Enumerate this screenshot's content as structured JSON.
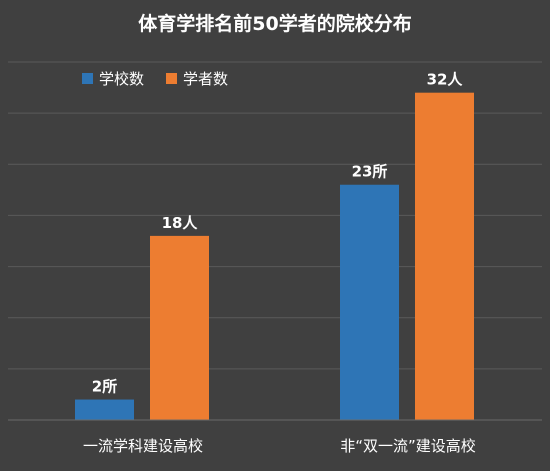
{
  "chart_data": {
    "type": "bar",
    "title": "体育学排名前50学者的院校分布",
    "categories": [
      "一流学科建设高校",
      "非“双一流”建设高校"
    ],
    "series": [
      {
        "name": "学校数",
        "values": [
          2,
          23
        ],
        "labels": [
          "2所",
          "23所"
        ],
        "color": "#2e75b6"
      },
      {
        "name": "学者数",
        "values": [
          18,
          32
        ],
        "labels": [
          "18人",
          "32人"
        ],
        "color": "#ed7d31"
      }
    ],
    "ylim": [
      0,
      35
    ],
    "grid": true,
    "legend_position": "top-left"
  }
}
